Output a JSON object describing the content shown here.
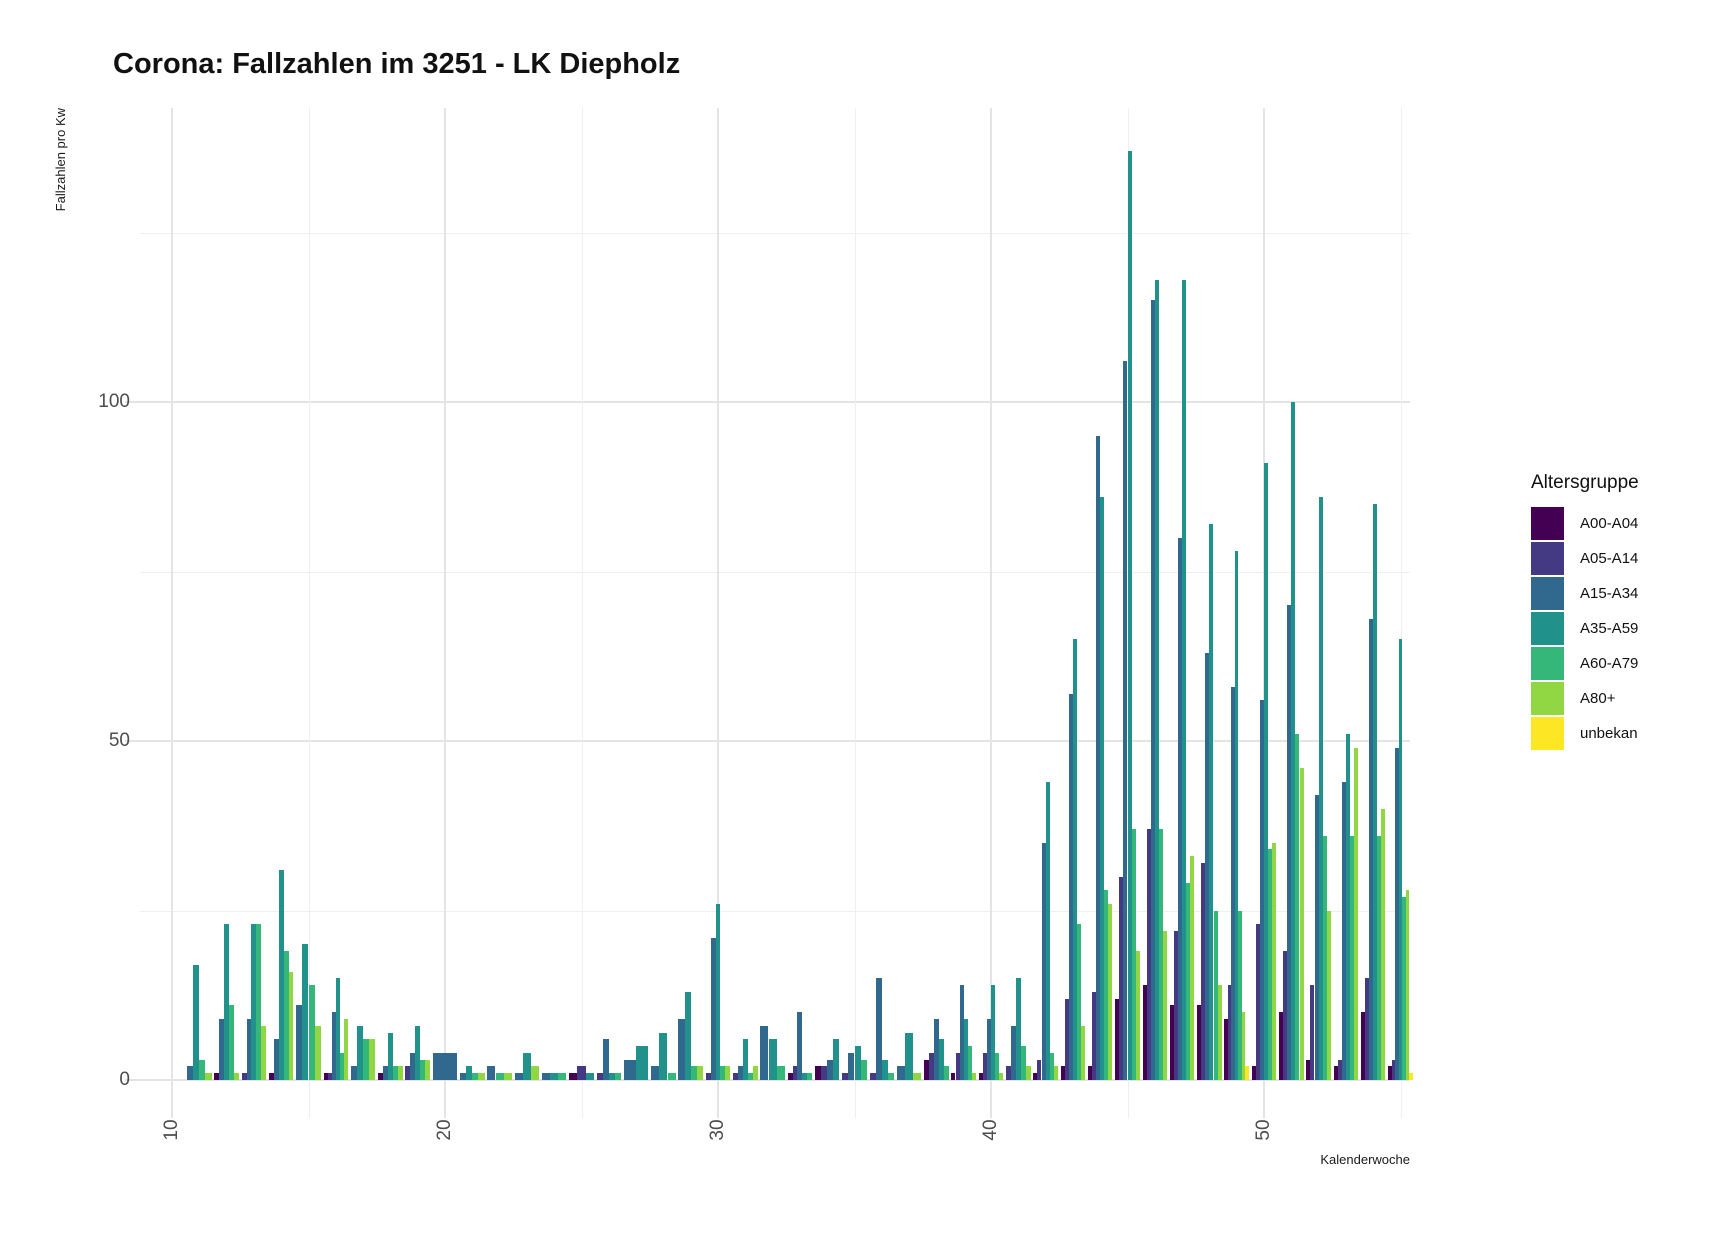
{
  "title": "Corona: Fallzahlen im 3251 - LK Diepholz",
  "y_axis": {
    "label": "Fallzahlen pro Kw",
    "ticks": [
      0,
      50,
      100
    ],
    "minor_ticks": [
      25,
      75,
      125
    ]
  },
  "x_axis": {
    "label": "Kalenderwoche",
    "ticks": [
      10,
      20,
      30,
      40,
      50
    ],
    "minor_ticks": [
      15,
      25,
      35,
      45,
      55
    ]
  },
  "legend": {
    "title": "Altersgruppe",
    "position": "right",
    "items": [
      {
        "label": "A00-A04",
        "color": "#440154"
      },
      {
        "label": "A05-A14",
        "color": "#443983"
      },
      {
        "label": "A15-A34",
        "color": "#31688e"
      },
      {
        "label": "A35-A59",
        "color": "#21918c"
      },
      {
        "label": "A60-A79",
        "color": "#35b779"
      },
      {
        "label": "A80+",
        "color": "#90d743"
      },
      {
        "label": "unbekan",
        "color": "#fde725"
      }
    ]
  },
  "chart_data": {
    "type": "bar",
    "grouped": true,
    "dodge_preserve": "total",
    "grid": true,
    "title": "Corona: Fallzahlen im 3251 - LK Diepholz",
    "xlabel": "Kalenderwoche",
    "ylabel": "Fallzahlen pro Kw",
    "xlim": [
      9.5,
      55.5
    ],
    "ylim": [
      0,
      143
    ],
    "categories": [
      11,
      12,
      13,
      14,
      15,
      16,
      17,
      18,
      19,
      20,
      21,
      22,
      23,
      24,
      25,
      26,
      27,
      28,
      29,
      30,
      31,
      32,
      33,
      34,
      35,
      36,
      37,
      38,
      39,
      40,
      41,
      42,
      43,
      44,
      45,
      46,
      47,
      48,
      49,
      50,
      51,
      52,
      53,
      54,
      55
    ],
    "series": [
      {
        "name": "A00-A04",
        "color": "#440154",
        "values": [
          0,
          1,
          0,
          1,
          0,
          1,
          0,
          1,
          0,
          0,
          0,
          0,
          0,
          0,
          1,
          0,
          0,
          0,
          0,
          0,
          0,
          0,
          1,
          2,
          0,
          0,
          0,
          3,
          1,
          1,
          0,
          1,
          2,
          2,
          12,
          14,
          11,
          11,
          9,
          2,
          10,
          3,
          2,
          10,
          2
        ]
      },
      {
        "name": "A05-A14",
        "color": "#443983",
        "values": [
          0,
          0,
          1,
          0,
          0,
          1,
          0,
          0,
          2,
          0,
          0,
          0,
          0,
          0,
          2,
          1,
          0,
          0,
          0,
          1,
          1,
          0,
          2,
          2,
          1,
          1,
          0,
          4,
          4,
          4,
          2,
          3,
          12,
          13,
          30,
          37,
          22,
          32,
          14,
          23,
          19,
          14,
          3,
          15,
          3
        ]
      },
      {
        "name": "A15-A34",
        "color": "#31688e",
        "values": [
          2,
          9,
          9,
          6,
          11,
          10,
          2,
          2,
          4,
          4,
          1,
          2,
          1,
          1,
          0,
          6,
          3,
          2,
          9,
          21,
          2,
          8,
          10,
          3,
          4,
          15,
          2,
          9,
          14,
          9,
          8,
          35,
          57,
          95,
          106,
          115,
          80,
          63,
          58,
          56,
          70,
          42,
          44,
          68,
          49
        ]
      },
      {
        "name": "A35-A59",
        "color": "#21918c",
        "values": [
          17,
          23,
          23,
          31,
          20,
          15,
          8,
          7,
          8,
          0,
          2,
          0,
          4,
          1,
          1,
          1,
          5,
          7,
          13,
          26,
          6,
          6,
          1,
          6,
          5,
          3,
          7,
          6,
          9,
          14,
          15,
          44,
          65,
          86,
          137,
          118,
          118,
          82,
          78,
          91,
          100,
          86,
          51,
          85,
          65
        ]
      },
      {
        "name": "A60-A79",
        "color": "#35b779",
        "values": [
          3,
          11,
          23,
          19,
          14,
          4,
          6,
          2,
          3,
          0,
          1,
          1,
          0,
          1,
          0,
          1,
          0,
          1,
          2,
          2,
          1,
          2,
          1,
          0,
          3,
          1,
          0,
          2,
          5,
          4,
          5,
          4,
          23,
          28,
          37,
          37,
          29,
          25,
          25,
          34,
          51,
          36,
          36,
          36,
          27
        ]
      },
      {
        "name": "A80+",
        "color": "#90d743",
        "values": [
          1,
          1,
          8,
          16,
          8,
          9,
          6,
          2,
          3,
          0,
          1,
          1,
          2,
          0,
          0,
          0,
          0,
          0,
          2,
          2,
          2,
          0,
          0,
          0,
          0,
          0,
          1,
          0,
          1,
          1,
          2,
          2,
          8,
          26,
          19,
          22,
          33,
          14,
          10,
          35,
          46,
          25,
          49,
          40,
          28
        ]
      },
      {
        "name": "unbekan",
        "color": "#fde725",
        "values": [
          0,
          0,
          0,
          0,
          0,
          0,
          0,
          0,
          0,
          0,
          0,
          0,
          0,
          0,
          0,
          0,
          0,
          0,
          0,
          0,
          0,
          0,
          0,
          0,
          0,
          0,
          0,
          0,
          0,
          0,
          0,
          0,
          0,
          0,
          0,
          0,
          0,
          0,
          2,
          0,
          0,
          0,
          0,
          0,
          1
        ]
      }
    ]
  }
}
